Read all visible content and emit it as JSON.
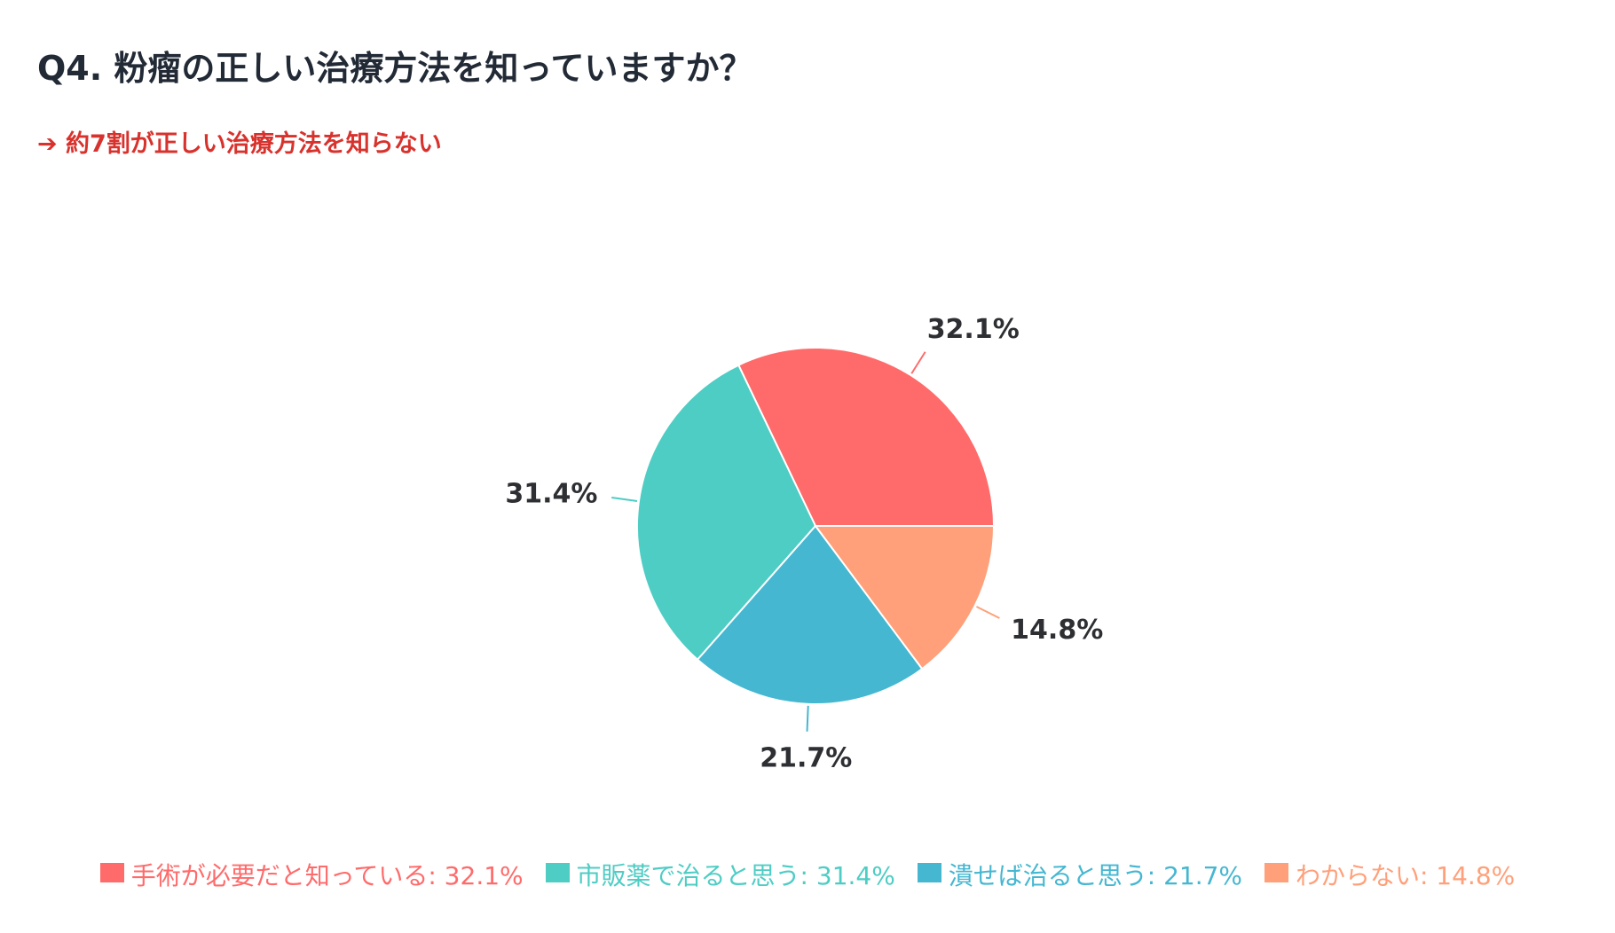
{
  "header": {
    "title": "Q4. 粉瘤の正しい治療方法を知っていますか？",
    "subtitle": "➔ 約7割が正しい治療方法を知らない"
  },
  "chart_data": {
    "type": "pie",
    "title": "Q4. 粉瘤の正しい治療方法を知っていますか？",
    "subtitle": "➔ 約7割が正しい治療方法を知らない",
    "slices": [
      {
        "name": "手術が必要だと知っている",
        "value": 32.1,
        "label": "32.1%",
        "color": "#ff6b6b"
      },
      {
        "name": "市販薬で治ると思う",
        "value": 31.4,
        "label": "31.4%",
        "color": "#4ecdc4"
      },
      {
        "name": "潰せば治ると思う",
        "value": 21.7,
        "label": "21.7%",
        "color": "#45b7d1"
      },
      {
        "name": "わからない",
        "value": 14.8,
        "label": "14.8%",
        "color": "#ffa07a"
      }
    ],
    "legend_position": "bottom",
    "start_angle_deg": 0,
    "direction": "counterclockwise"
  },
  "legend": {
    "items": [
      {
        "text": "手術が必要だと知っている: 32.1%",
        "color": "#ff6b6b"
      },
      {
        "text": "市販薬で治ると思う: 31.4%",
        "color": "#4ecdc4"
      },
      {
        "text": "潰せば治ると思う: 21.7%",
        "color": "#45b7d1"
      },
      {
        "text": "わからない: 14.8%",
        "color": "#ffa07a"
      }
    ]
  }
}
